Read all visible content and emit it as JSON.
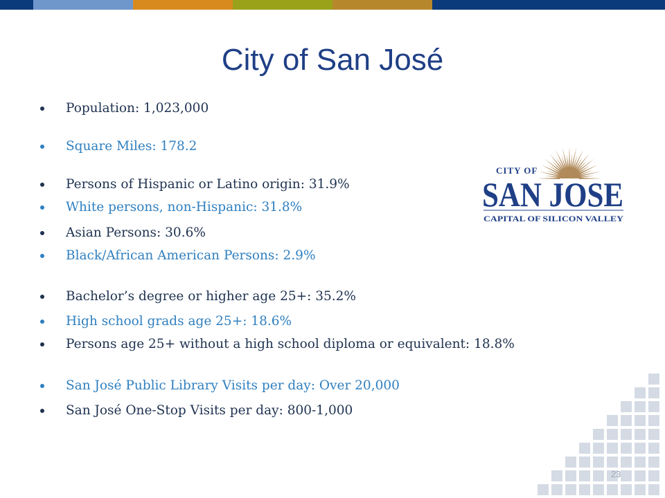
{
  "slide": {
    "title": "City of San José",
    "page_number": "23",
    "top_bar_colors": [
      "#0b3b7a",
      "#6f97cb",
      "#d98a1f",
      "#9aa21a",
      "#b7882b",
      "#0b3b7a"
    ],
    "bullets": [
      {
        "text": "Population: 1,023,000",
        "color": "dark"
      },
      {
        "text": "Square Miles: 178.2",
        "color": "blue"
      },
      {
        "text": "Persons of Hispanic or Latino origin:  31.9%",
        "color": "dark"
      },
      {
        "text": "White persons, non-Hispanic:  31.8%",
        "color": "blue"
      },
      {
        "text": "Asian Persons:  30.6%",
        "color": "dark"
      },
      {
        "text": "Black/African American Persons:  2.9%",
        "color": "blue"
      },
      {
        "text": "Bachelor’s degree or higher age 25+:  35.2%",
        "color": "dark"
      },
      {
        "text": "High school grads age 25+:  18.6%",
        "color": "blue"
      },
      {
        "text": "Persons age 25+ without a high school diploma or equivalent: 18.8%",
        "color": "dark"
      },
      {
        "text": "San José Public Library Visits per day:  Over 20,000",
        "color": "blue"
      },
      {
        "text": "San José One-Stop Visits per day:  800-1,000",
        "color": "dark"
      }
    ]
  },
  "logo": {
    "line1": "CITY OF",
    "line2": "SAN JOSE",
    "line3": "CAPITAL OF SILICON VALLEY",
    "text_color": "#1f3f86",
    "sun_color": "#b08a5a",
    "icon": "sunburst-icon"
  },
  "decoration": {
    "grid_color": "#d5dbe4",
    "icon": "square-grid-pattern"
  }
}
